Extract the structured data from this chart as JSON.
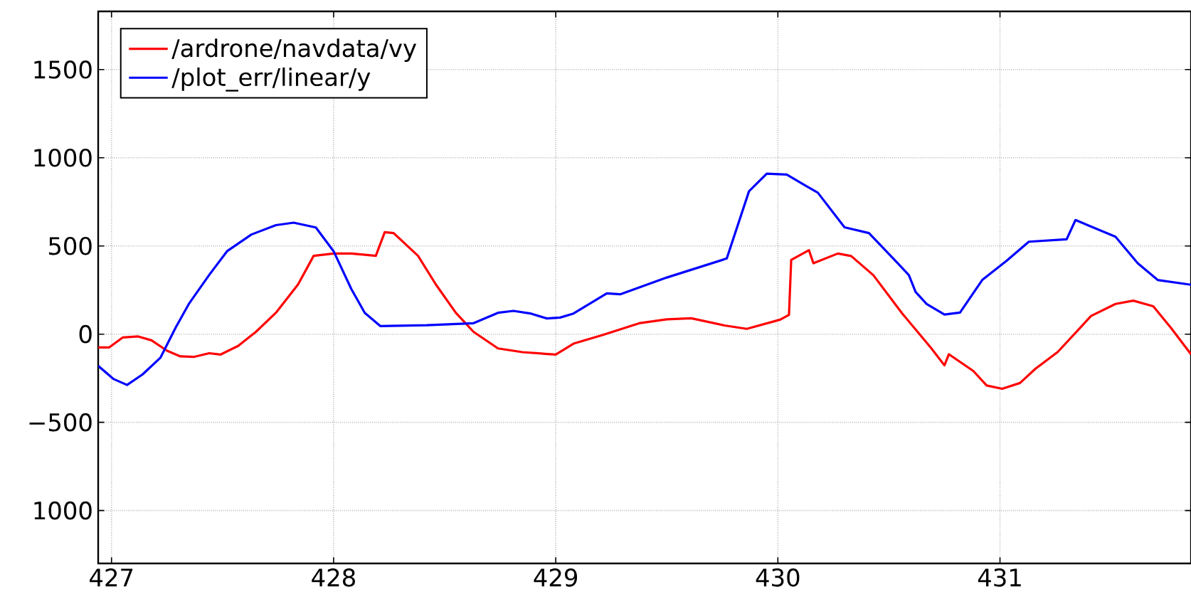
{
  "chart_data": {
    "type": "line",
    "xlim": [
      426.94,
      431.86
    ],
    "ylim": [
      -1300,
      1830
    ],
    "xticks": [
      427,
      428,
      429,
      430,
      431
    ],
    "yticks": [
      {
        "value": -1000,
        "label": "1000"
      },
      {
        "value": -500,
        "label": "−500"
      },
      0,
      500,
      1000,
      1500
    ],
    "grid": true,
    "legend": "top left",
    "line_style": "solid",
    "marker": "none",
    "series": [
      {
        "name": "/ardrone/navdata/vy",
        "color": "#ff0000",
        "x": [
          426.94,
          426.99,
          427.05,
          427.12,
          427.18,
          427.25,
          427.31,
          427.37,
          427.44,
          427.49,
          427.57,
          427.65,
          427.74,
          427.84,
          427.91,
          428.0,
          428.08,
          428.19,
          428.23,
          428.27,
          428.38,
          428.46,
          428.55,
          428.63,
          428.74,
          428.85,
          429.0,
          429.08,
          429.21,
          429.38,
          429.5,
          429.61,
          429.76,
          429.86,
          430.01,
          430.05,
          430.06,
          430.14,
          430.16,
          430.27,
          430.33,
          430.43,
          430.56,
          430.69,
          430.75,
          430.77,
          430.88,
          430.94,
          431.01,
          431.09,
          431.16,
          431.26,
          431.41,
          431.52,
          431.6,
          431.69,
          431.77,
          431.86
        ],
        "values": [
          -75,
          -75,
          -19,
          -13,
          -35,
          -94,
          -126,
          -129,
          -108,
          -116,
          -67,
          13,
          121,
          282,
          444,
          457,
          457,
          444,
          578,
          573,
          444,
          282,
          121,
          13,
          -81,
          -102,
          -116,
          -54,
          -5,
          63,
          84,
          90,
          49,
          30,
          82,
          109,
          421,
          476,
          402,
          457,
          443,
          334,
          117,
          -79,
          -177,
          -114,
          -209,
          -291,
          -310,
          -277,
          -196,
          -101,
          103,
          171,
          190,
          158,
          35,
          -114
        ]
      },
      {
        "name": "/plot_err/linear/y",
        "color": "#0000ff",
        "x": [
          426.94,
          427.01,
          427.07,
          427.14,
          427.22,
          427.29,
          427.35,
          427.44,
          427.52,
          427.63,
          427.74,
          427.82,
          427.92,
          428.0,
          428.08,
          428.14,
          428.21,
          428.42,
          428.63,
          428.74,
          428.81,
          428.89,
          428.96,
          429.02,
          429.08,
          429.23,
          429.29,
          429.5,
          429.77,
          429.87,
          429.95,
          430.04,
          430.12,
          430.18,
          430.3,
          430.41,
          430.54,
          430.59,
          430.62,
          430.67,
          430.75,
          430.82,
          430.92,
          431.03,
          431.13,
          431.3,
          431.34,
          431.52,
          431.62,
          431.71,
          431.86
        ],
        "values": [
          -180,
          -255,
          -288,
          -228,
          -134,
          40,
          175,
          336,
          470,
          565,
          618,
          632,
          605,
          470,
          255,
          121,
          46,
          51,
          62,
          121,
          132,
          116,
          89,
          94,
          117,
          231,
          226,
          321,
          429,
          810,
          910,
          905,
          845,
          802,
          606,
          573,
          402,
          334,
          239,
          171,
          111,
          122,
          307,
          416,
          524,
          538,
          647,
          552,
          402,
          307,
          280
        ]
      }
    ]
  }
}
